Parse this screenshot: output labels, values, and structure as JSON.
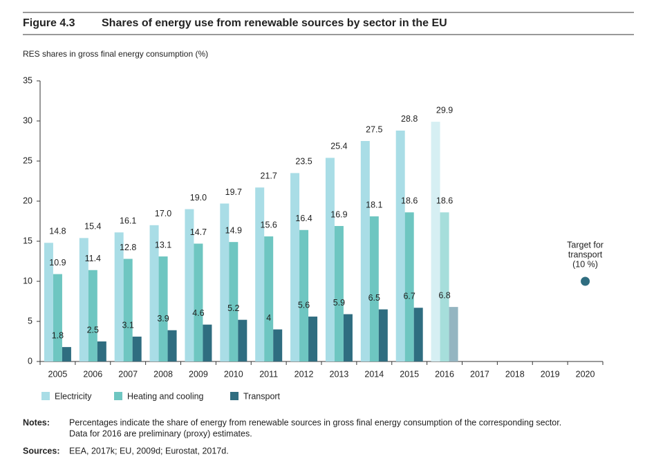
{
  "header": {
    "figure": "Figure 4.3",
    "title": "Shares of energy use from renewable sources by sector in the EU"
  },
  "chart_data": {
    "type": "bar",
    "y_label": "RES shares in gross final energy consumption (%)",
    "categories": [
      "2005",
      "2006",
      "2007",
      "2008",
      "2009",
      "2010",
      "2011",
      "2012",
      "2013",
      "2014",
      "2015",
      "2016",
      "2017",
      "2018",
      "2019",
      "2020"
    ],
    "series": [
      {
        "name": "Electricity",
        "color": "#a9dde6",
        "colors": [
          "#a9dde6",
          "#a9dde6",
          "#a9dde6",
          "#a9dde6",
          "#a9dde6",
          "#a9dde6",
          "#a9dde6",
          "#a9dde6",
          "#a9dde6",
          "#a9dde6",
          "#a9dde6",
          "#d6eff3",
          null,
          null,
          null,
          null
        ],
        "values": [
          14.8,
          15.4,
          16.1,
          17.0,
          19.0,
          19.7,
          21.7,
          23.5,
          25.4,
          27.5,
          28.8,
          29.9,
          null,
          null,
          null,
          null
        ],
        "value_labels": [
          "14.8",
          "15.4",
          "16.1",
          "17.0",
          "19.0",
          "19.7",
          "21.7",
          "23.5",
          "25.4",
          "27.5",
          "28.8",
          "29.9",
          null,
          null,
          null,
          null
        ]
      },
      {
        "name": "Heating and cooling",
        "color": "#6ec6c1",
        "colors": [
          "#6ec6c1",
          "#6ec6c1",
          "#6ec6c1",
          "#6ec6c1",
          "#6ec6c1",
          "#6ec6c1",
          "#6ec6c1",
          "#6ec6c1",
          "#6ec6c1",
          "#6ec6c1",
          "#6ec6c1",
          "#a6dedb",
          null,
          null,
          null,
          null
        ],
        "values": [
          10.9,
          11.4,
          12.8,
          13.1,
          14.7,
          14.9,
          15.6,
          16.4,
          16.9,
          18.1,
          18.6,
          18.6,
          null,
          null,
          null,
          null
        ]
      },
      {
        "name": "Transport",
        "color": "#2f6d80",
        "colors": [
          "#2f6d80",
          "#2f6d80",
          "#2f6d80",
          "#2f6d80",
          "#2f6d80",
          "#2f6d80",
          "#2f6d80",
          "#2f6d80",
          "#2f6d80",
          "#2f6d80",
          "#2f6d80",
          "#94b5c1",
          null,
          null,
          null,
          null
        ],
        "values": [
          1.8,
          2.5,
          3.1,
          3.9,
          4.6,
          5.2,
          4.0,
          5.6,
          5.9,
          6.5,
          6.7,
          6.8,
          null,
          null,
          null,
          null
        ]
      }
    ],
    "ylim": [
      0,
      35
    ],
    "yticks": [
      0,
      5,
      10,
      15,
      20,
      25,
      30,
      35
    ],
    "annotations": [
      {
        "text": [
          "Target for",
          "transport",
          "(10 %)"
        ],
        "category": "2020",
        "value": 10,
        "color": "#2f6d80"
      }
    ]
  },
  "notes": {
    "label": "Notes:",
    "lines": [
      "Percentages indicate the share of energy from renewable sources in gross final energy consumption of the corresponding sector.",
      "Data for 2016 are preliminary (proxy) estimates."
    ]
  },
  "sources": {
    "label": "Sources:",
    "text": "EEA, 2017k; EU, 2009d; Eurostat, 2017d."
  }
}
